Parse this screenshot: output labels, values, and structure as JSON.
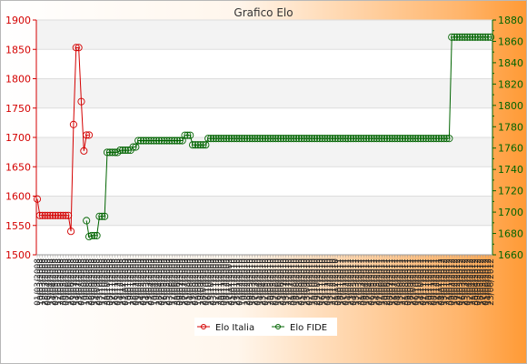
{
  "chart_data": {
    "type": "line",
    "title": "Grafico Elo",
    "grid": true,
    "legend_position": "bottom",
    "y_left": {
      "min": 1500,
      "max": 1900,
      "ticks": [
        1500,
        1550,
        1600,
        1650,
        1700,
        1750,
        1800,
        1850,
        1900
      ],
      "color": "#d40000"
    },
    "y_right": {
      "min": 1660,
      "max": 1880,
      "ticks": [
        1660,
        1680,
        1700,
        1720,
        1740,
        1760,
        1780,
        1800,
        1820,
        1840,
        1860,
        1880
      ],
      "color": "#006400"
    },
    "series": [
      {
        "name": "Elo Italia",
        "axis": "left",
        "color": "#d40000",
        "values": [
          1595,
          1567,
          1567,
          1567,
          1567,
          1567,
          1567,
          1567,
          1567,
          1567,
          1567,
          1567,
          1567,
          1540,
          1722,
          1853,
          1853,
          1761,
          1677,
          1704,
          1704
        ]
      },
      {
        "name": "Elo FIDE",
        "axis": "right",
        "color": "#006400",
        "start_index": 19,
        "segments": [
          {
            "count": 1,
            "value": 1692
          },
          {
            "count": 1,
            "value": 1677
          },
          {
            "count": 3,
            "value": 1678
          },
          {
            "count": 3,
            "value": 1696
          },
          {
            "count": 5,
            "value": 1756
          },
          {
            "count": 5,
            "value": 1758
          },
          {
            "count": 2,
            "value": 1761
          },
          {
            "count": 18,
            "value": 1767
          },
          {
            "count": 3,
            "value": 1772
          },
          {
            "count": 6,
            "value": 1763
          },
          {
            "count": 94,
            "value": 1769
          },
          {
            "count": 16,
            "value": 1864
          }
        ]
      }
    ],
    "x_tick_labels": "illegible overlapping dates"
  }
}
